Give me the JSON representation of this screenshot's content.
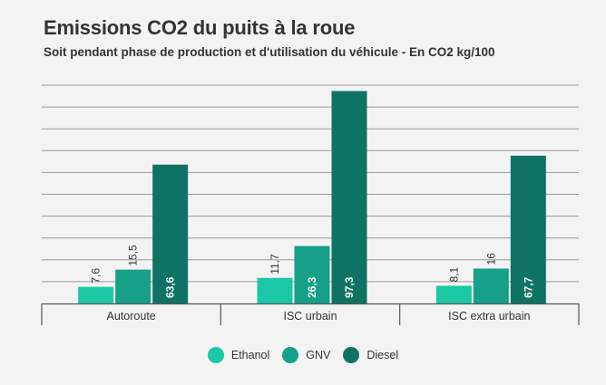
{
  "chart_data": {
    "type": "bar",
    "title": "Emissions CO2 du puits à la roue",
    "subtitle": "Soit pendant phase de production et d'utilisation du véhicule - En CO2 kg/100",
    "categories": [
      "Autoroute",
      "ISC urbain",
      "ISC extra urbain"
    ],
    "series": [
      {
        "name": "Ethanol",
        "values": [
          7.6,
          11.7,
          8.1
        ],
        "labels": [
          "7,6",
          "11,7",
          "8,1"
        ],
        "color": "#1bc7a5"
      },
      {
        "name": "GNV",
        "values": [
          15.5,
          26.3,
          16
        ],
        "labels": [
          "15,5",
          "26,3",
          "16"
        ],
        "color": "#16a088"
      },
      {
        "name": "Diesel",
        "values": [
          63.6,
          97.3,
          67.7
        ],
        "labels": [
          "63,6",
          "97,3",
          "67,7"
        ],
        "color": "#0e7364"
      }
    ],
    "ylim": [
      0,
      100
    ],
    "grid": true,
    "legend": "bottom-center",
    "xlabel": "",
    "ylabel": ""
  }
}
